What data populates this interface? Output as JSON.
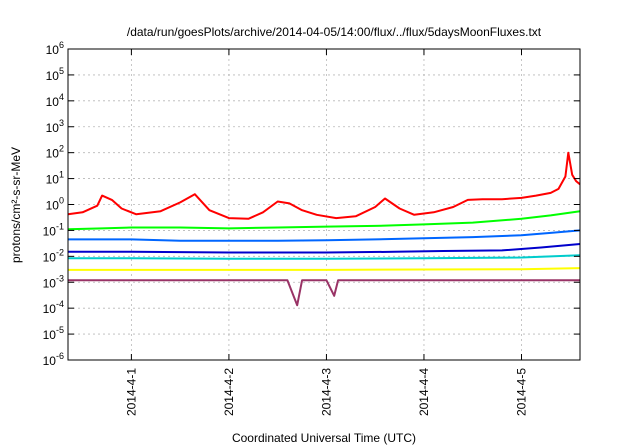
{
  "chart_data": {
    "type": "line",
    "title": "/data/run/goesPlots/archive/2014-04-05/14:00/flux/../flux/5daysMoonFluxes.txt",
    "xlabel": "Coordinated Universal Time (UTC)",
    "ylabel": "protons/cm²-s-sr-MeV",
    "ylog": true,
    "ylim": [
      1e-06,
      1000000.0
    ],
    "xlim": [
      -0.65,
      4.6
    ],
    "grid": true,
    "legend": "none",
    "yticks": [
      {
        "exp": -6,
        "label": "10",
        "sup": "-6"
      },
      {
        "exp": -5,
        "label": "10",
        "sup": "-5"
      },
      {
        "exp": -4,
        "label": "10",
        "sup": "-4"
      },
      {
        "exp": -3,
        "label": "10",
        "sup": "-3"
      },
      {
        "exp": -2,
        "label": "10",
        "sup": "-2"
      },
      {
        "exp": -1,
        "label": "10",
        "sup": "-1"
      },
      {
        "exp": 0,
        "label": "10",
        "sup": "0"
      },
      {
        "exp": 1,
        "label": "10",
        "sup": "1"
      },
      {
        "exp": 2,
        "label": "10",
        "sup": "2"
      },
      {
        "exp": 3,
        "label": "10",
        "sup": "3"
      },
      {
        "exp": 4,
        "label": "10",
        "sup": "4"
      },
      {
        "exp": 5,
        "label": "10",
        "sup": "5"
      },
      {
        "exp": 6,
        "label": "10",
        "sup": "6"
      }
    ],
    "xticks": [
      {
        "day": 0,
        "label": "2014-4-1"
      },
      {
        "day": 1,
        "label": "2014-4-2"
      },
      {
        "day": 2,
        "label": "2014-4-3"
      },
      {
        "day": 3,
        "label": "2014-4-4"
      },
      {
        "day": 4,
        "label": "2014-4-5"
      }
    ],
    "series": [
      {
        "color": "#ff0000",
        "points": [
          [
            -0.65,
            0.42
          ],
          [
            -0.5,
            0.5
          ],
          [
            -0.35,
            0.9
          ],
          [
            -0.3,
            2.2
          ],
          [
            -0.2,
            1.5
          ],
          [
            -0.1,
            0.7
          ],
          [
            0.05,
            0.42
          ],
          [
            0.3,
            0.55
          ],
          [
            0.5,
            1.2
          ],
          [
            0.65,
            2.5
          ],
          [
            0.8,
            0.6
          ],
          [
            1.0,
            0.3
          ],
          [
            1.2,
            0.28
          ],
          [
            1.35,
            0.5
          ],
          [
            1.5,
            1.3
          ],
          [
            1.62,
            1.1
          ],
          [
            1.75,
            0.6
          ],
          [
            1.9,
            0.4
          ],
          [
            2.1,
            0.3
          ],
          [
            2.3,
            0.35
          ],
          [
            2.5,
            0.8
          ],
          [
            2.6,
            1.7
          ],
          [
            2.75,
            0.7
          ],
          [
            2.9,
            0.4
          ],
          [
            3.1,
            0.5
          ],
          [
            3.3,
            0.8
          ],
          [
            3.45,
            1.5
          ],
          [
            3.6,
            1.6
          ],
          [
            3.8,
            1.6
          ],
          [
            4.0,
            1.8
          ],
          [
            4.15,
            2.2
          ],
          [
            4.3,
            2.8
          ],
          [
            4.38,
            4.0
          ],
          [
            4.45,
            12
          ],
          [
            4.48,
            100
          ],
          [
            4.52,
            14
          ],
          [
            4.56,
            8
          ],
          [
            4.6,
            6
          ]
        ]
      },
      {
        "color": "#00ff00",
        "points": [
          [
            -0.65,
            0.11
          ],
          [
            -0.3,
            0.12
          ],
          [
            0.0,
            0.13
          ],
          [
            0.5,
            0.13
          ],
          [
            1.0,
            0.12
          ],
          [
            1.5,
            0.13
          ],
          [
            2.0,
            0.14
          ],
          [
            2.5,
            0.15
          ],
          [
            3.0,
            0.17
          ],
          [
            3.5,
            0.2
          ],
          [
            4.0,
            0.28
          ],
          [
            4.3,
            0.38
          ],
          [
            4.6,
            0.55
          ]
        ]
      },
      {
        "color": "#0066ff",
        "points": [
          [
            -0.65,
            0.045
          ],
          [
            -0.3,
            0.045
          ],
          [
            0.0,
            0.045
          ],
          [
            0.5,
            0.04
          ],
          [
            1.0,
            0.04
          ],
          [
            1.5,
            0.04
          ],
          [
            2.0,
            0.042
          ],
          [
            2.5,
            0.045
          ],
          [
            3.0,
            0.05
          ],
          [
            3.5,
            0.055
          ],
          [
            4.0,
            0.065
          ],
          [
            4.3,
            0.08
          ],
          [
            4.6,
            0.1
          ]
        ]
      },
      {
        "color": "#0000cc",
        "points": [
          [
            -0.65,
            0.015
          ],
          [
            0.0,
            0.015
          ],
          [
            1.0,
            0.014
          ],
          [
            2.0,
            0.014
          ],
          [
            2.7,
            0.015
          ],
          [
            3.2,
            0.016
          ],
          [
            3.8,
            0.017
          ],
          [
            4.2,
            0.022
          ],
          [
            4.6,
            0.03
          ]
        ]
      },
      {
        "color": "#00cccc",
        "points": [
          [
            -0.65,
            0.0085
          ],
          [
            0.0,
            0.0085
          ],
          [
            1.0,
            0.008
          ],
          [
            2.0,
            0.008
          ],
          [
            3.0,
            0.0085
          ],
          [
            4.0,
            0.009
          ],
          [
            4.6,
            0.011
          ]
        ]
      },
      {
        "color": "#ffff00",
        "points": [
          [
            -0.65,
            0.003
          ],
          [
            0.0,
            0.003
          ],
          [
            1.0,
            0.003
          ],
          [
            2.0,
            0.003
          ],
          [
            3.0,
            0.0031
          ],
          [
            4.0,
            0.0032
          ],
          [
            4.6,
            0.0035
          ]
        ]
      },
      {
        "color": "#993366",
        "points": [
          [
            -0.65,
            0.0012
          ],
          [
            0.0,
            0.0012
          ],
          [
            1.0,
            0.0012
          ],
          [
            1.6,
            0.0012
          ],
          [
            1.7,
            0.00013
          ],
          [
            1.75,
            0.0012
          ],
          [
            2.0,
            0.0012
          ],
          [
            2.08,
            0.0003
          ],
          [
            2.12,
            0.0012
          ],
          [
            3.0,
            0.0012
          ],
          [
            4.0,
            0.0012
          ],
          [
            4.6,
            0.0012
          ]
        ]
      }
    ]
  }
}
